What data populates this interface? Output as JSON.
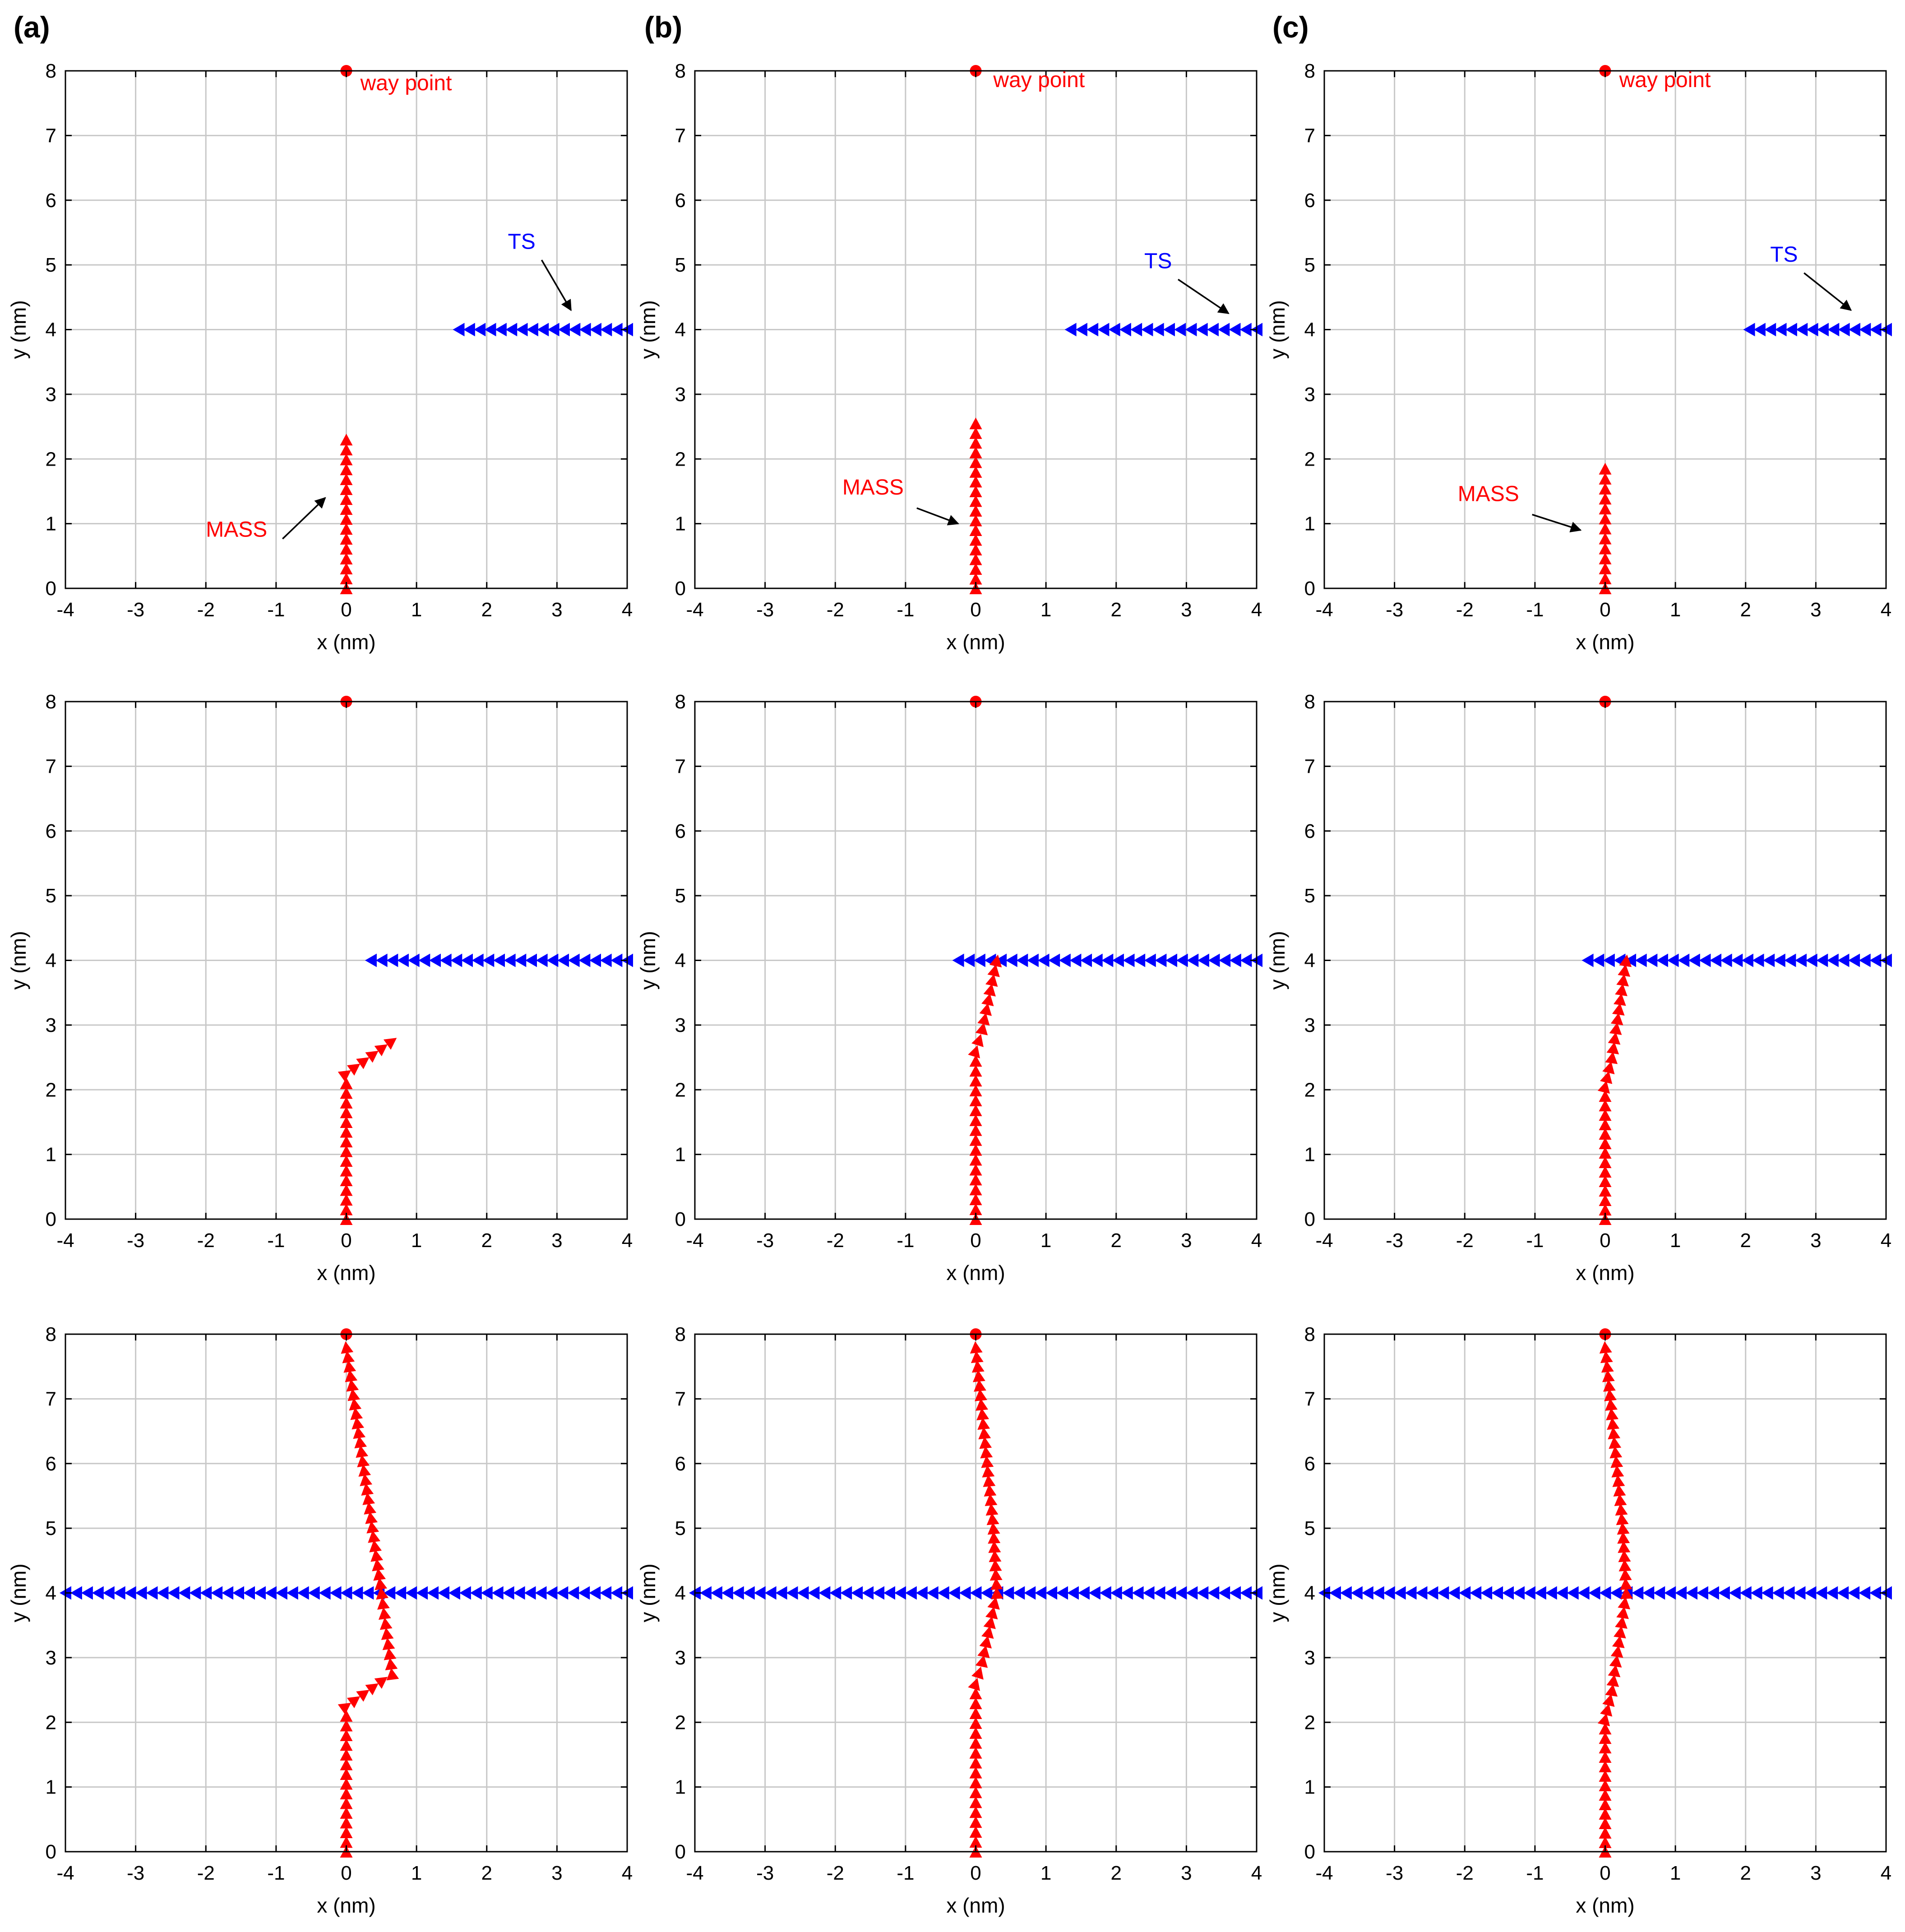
{
  "figure": {
    "panel_labels": [
      "(a)",
      "(b)",
      "(c)"
    ]
  },
  "colors": {
    "mass": "#ff0000",
    "ts": "#0000ff",
    "grid": "#c8c8c8",
    "axis": "#000000"
  },
  "chart_data": [
    {
      "column": "(a)",
      "row": 1,
      "type": "scatter",
      "xlabel": "x (nm)",
      "ylabel": "y (nm)",
      "xlim": [
        -4,
        4
      ],
      "ylim": [
        0,
        8
      ],
      "xticks": [
        "-4",
        "-3",
        "-2",
        "-1",
        "0",
        "1",
        "2",
        "3",
        "4"
      ],
      "yticks": [
        "0",
        "1",
        "2",
        "3",
        "4",
        "5",
        "6",
        "7",
        "8"
      ],
      "grid": true,
      "waypoint": {
        "x": 0,
        "y": 8
      },
      "mass_path": [
        [
          0,
          0
        ],
        [
          0,
          2.3
        ]
      ],
      "mass_direction": "up",
      "ts_path": [
        [
          4,
          4
        ],
        [
          1.6,
          4
        ]
      ],
      "ts_direction": "left",
      "annotations": [
        {
          "text": "way point",
          "color": "red",
          "x": 0.2,
          "y": 7.7
        },
        {
          "text": "TS",
          "color": "blue",
          "x": 2.3,
          "y": 5.25,
          "arrow_to": [
            3.2,
            4.3
          ]
        },
        {
          "text": "MASS",
          "color": "red",
          "x": -2.0,
          "y": 0.8,
          "arrow_to": [
            -0.3,
            1.4
          ]
        }
      ]
    },
    {
      "column": "(b)",
      "row": 1,
      "type": "scatter",
      "xlabel": "x (nm)",
      "ylabel": "y (nm)",
      "xlim": [
        -4,
        4
      ],
      "ylim": [
        0,
        8
      ],
      "xticks": [
        "-4",
        "-3",
        "-2",
        "-1",
        "0",
        "1",
        "2",
        "3",
        "4"
      ],
      "yticks": [
        "0",
        "1",
        "2",
        "3",
        "4",
        "5",
        "6",
        "7",
        "8"
      ],
      "grid": true,
      "waypoint": {
        "x": 0,
        "y": 8
      },
      "mass_path": [
        [
          0,
          0
        ],
        [
          0,
          2.55
        ]
      ],
      "mass_direction": "up",
      "ts_path": [
        [
          4,
          4
        ],
        [
          1.35,
          4
        ]
      ],
      "ts_direction": "left",
      "annotations": [
        {
          "text": "way point",
          "color": "red",
          "x": 0.25,
          "y": 7.75
        },
        {
          "text": "TS",
          "color": "blue",
          "x": 2.4,
          "y": 4.95,
          "arrow_to": [
            3.6,
            4.25
          ]
        },
        {
          "text": "MASS",
          "color": "red",
          "x": -1.9,
          "y": 1.45,
          "arrow_to": [
            -0.25,
            1.0
          ]
        }
      ]
    },
    {
      "column": "(c)",
      "row": 1,
      "type": "scatter",
      "xlabel": "x (nm)",
      "ylabel": "y (nm)",
      "xlim": [
        -4,
        4
      ],
      "ylim": [
        0,
        8
      ],
      "xticks": [
        "-4",
        "-3",
        "-2",
        "-1",
        "0",
        "1",
        "2",
        "3",
        "4"
      ],
      "yticks": [
        "0",
        "1",
        "2",
        "3",
        "4",
        "5",
        "6",
        "7",
        "8"
      ],
      "grid": true,
      "waypoint": {
        "x": 0,
        "y": 8
      },
      "mass_path": [
        [
          0,
          0
        ],
        [
          0,
          1.85
        ]
      ],
      "mass_direction": "up",
      "ts_path": [
        [
          4,
          4
        ],
        [
          2.05,
          4
        ]
      ],
      "ts_direction": "left",
      "annotations": [
        {
          "text": "way point",
          "color": "red",
          "x": 0.2,
          "y": 7.75
        },
        {
          "text": "TS",
          "color": "blue",
          "x": 2.35,
          "y": 5.05,
          "arrow_to": [
            3.5,
            4.3
          ]
        },
        {
          "text": "MASS",
          "color": "red",
          "x": -2.1,
          "y": 1.35,
          "arrow_to": [
            -0.35,
            0.9
          ]
        }
      ]
    },
    {
      "column": "(a)",
      "row": 2,
      "type": "scatter",
      "xlabel": "x (nm)",
      "ylabel": "y (nm)",
      "xlim": [
        -4,
        4
      ],
      "ylim": [
        0,
        8
      ],
      "xticks": [
        "-4",
        "-3",
        "-2",
        "-1",
        "0",
        "1",
        "2",
        "3",
        "4"
      ],
      "yticks": [
        "0",
        "1",
        "2",
        "3",
        "4",
        "5",
        "6",
        "7",
        "8"
      ],
      "grid": true,
      "waypoint": {
        "x": 0,
        "y": 8
      },
      "mass_path": [
        [
          0,
          0
        ],
        [
          0,
          2.25
        ],
        [
          0.65,
          2.75
        ]
      ],
      "mass_direction": "up",
      "ts_path": [
        [
          4,
          4
        ],
        [
          0.35,
          4
        ]
      ],
      "ts_direction": "left",
      "annotations": []
    },
    {
      "column": "(b)",
      "row": 2,
      "type": "scatter",
      "xlabel": "x (nm)",
      "ylabel": "y (nm)",
      "xlim": [
        -4,
        4
      ],
      "ylim": [
        0,
        8
      ],
      "xticks": [
        "-4",
        "-3",
        "-2",
        "-1",
        "0",
        "1",
        "2",
        "3",
        "4"
      ],
      "yticks": [
        "0",
        "1",
        "2",
        "3",
        "4",
        "5",
        "6",
        "7",
        "8"
      ],
      "grid": true,
      "waypoint": {
        "x": 0,
        "y": 8
      },
      "mass_path": [
        [
          0,
          0
        ],
        [
          0,
          2.6
        ],
        [
          0.1,
          2.95
        ],
        [
          0.3,
          4.0
        ]
      ],
      "mass_direction": "up",
      "ts_path": [
        [
          4,
          4
        ],
        [
          -0.25,
          4
        ]
      ],
      "ts_direction": "left",
      "annotations": []
    },
    {
      "column": "(c)",
      "row": 2,
      "type": "scatter",
      "xlabel": "x (nm)",
      "ylabel": "y (nm)",
      "xlim": [
        -4,
        4
      ],
      "ylim": [
        0,
        8
      ],
      "xticks": [
        "-4",
        "-3",
        "-2",
        "-1",
        "0",
        "1",
        "2",
        "3",
        "4"
      ],
      "yticks": [
        "0",
        "1",
        "2",
        "3",
        "4",
        "5",
        "6",
        "7",
        "8"
      ],
      "grid": true,
      "waypoint": {
        "x": 0,
        "y": 8
      },
      "mass_path": [
        [
          0,
          0
        ],
        [
          0,
          2.05
        ],
        [
          0.1,
          2.5
        ],
        [
          0.3,
          4.0
        ]
      ],
      "mass_direction": "up",
      "ts_path": [
        [
          4,
          4
        ],
        [
          -0.25,
          4
        ]
      ],
      "ts_direction": "left",
      "annotations": []
    },
    {
      "column": "(a)",
      "row": 3,
      "type": "scatter",
      "xlabel": "x (nm)",
      "ylabel": "y (nm)",
      "xlim": [
        -4,
        4
      ],
      "ylim": [
        0,
        8
      ],
      "xticks": [
        "-4",
        "-3",
        "-2",
        "-1",
        "0",
        "1",
        "2",
        "3",
        "4"
      ],
      "yticks": [
        "0",
        "1",
        "2",
        "3",
        "4",
        "5",
        "6",
        "7",
        "8"
      ],
      "grid": true,
      "waypoint": {
        "x": 0,
        "y": 8
      },
      "mass_path": [
        [
          0,
          0
        ],
        [
          0,
          2.25
        ],
        [
          0.65,
          2.75
        ],
        [
          0.5,
          4.0
        ],
        [
          0,
          7.8
        ]
      ],
      "mass_direction": "up",
      "ts_path": [
        [
          4,
          4
        ],
        [
          -4,
          4
        ]
      ],
      "ts_direction": "left",
      "annotations": []
    },
    {
      "column": "(b)",
      "row": 3,
      "type": "scatter",
      "xlabel": "x (nm)",
      "ylabel": "y (nm)",
      "xlim": [
        -4,
        4
      ],
      "ylim": [
        0,
        8
      ],
      "xticks": [
        "-4",
        "-3",
        "-2",
        "-1",
        "0",
        "1",
        "2",
        "3",
        "4"
      ],
      "yticks": [
        "0",
        "1",
        "2",
        "3",
        "4",
        "5",
        "6",
        "7",
        "8"
      ],
      "grid": true,
      "waypoint": {
        "x": 0,
        "y": 8
      },
      "mass_path": [
        [
          0,
          0
        ],
        [
          0,
          2.6
        ],
        [
          0.1,
          2.95
        ],
        [
          0.3,
          4.0
        ],
        [
          0.25,
          5.0
        ],
        [
          0,
          7.8
        ]
      ],
      "mass_direction": "up",
      "ts_path": [
        [
          4,
          4
        ],
        [
          -4,
          4
        ]
      ],
      "ts_direction": "left",
      "annotations": []
    },
    {
      "column": "(c)",
      "row": 3,
      "type": "scatter",
      "xlabel": "x (nm)",
      "ylabel": "y (nm)",
      "xlim": [
        -4,
        4
      ],
      "ylim": [
        0,
        8
      ],
      "xticks": [
        "-4",
        "-3",
        "-2",
        "-1",
        "0",
        "1",
        "2",
        "3",
        "4"
      ],
      "yticks": [
        "0",
        "1",
        "2",
        "3",
        "4",
        "5",
        "6",
        "7",
        "8"
      ],
      "grid": true,
      "waypoint": {
        "x": 0,
        "y": 8
      },
      "mass_path": [
        [
          0,
          0
        ],
        [
          0,
          2.05
        ],
        [
          0.1,
          2.5
        ],
        [
          0.3,
          4.0
        ],
        [
          0.25,
          5.0
        ],
        [
          0,
          7.8
        ]
      ],
      "mass_direction": "up",
      "ts_path": [
        [
          4,
          4
        ],
        [
          -4,
          4
        ]
      ],
      "ts_direction": "left",
      "annotations": []
    }
  ]
}
